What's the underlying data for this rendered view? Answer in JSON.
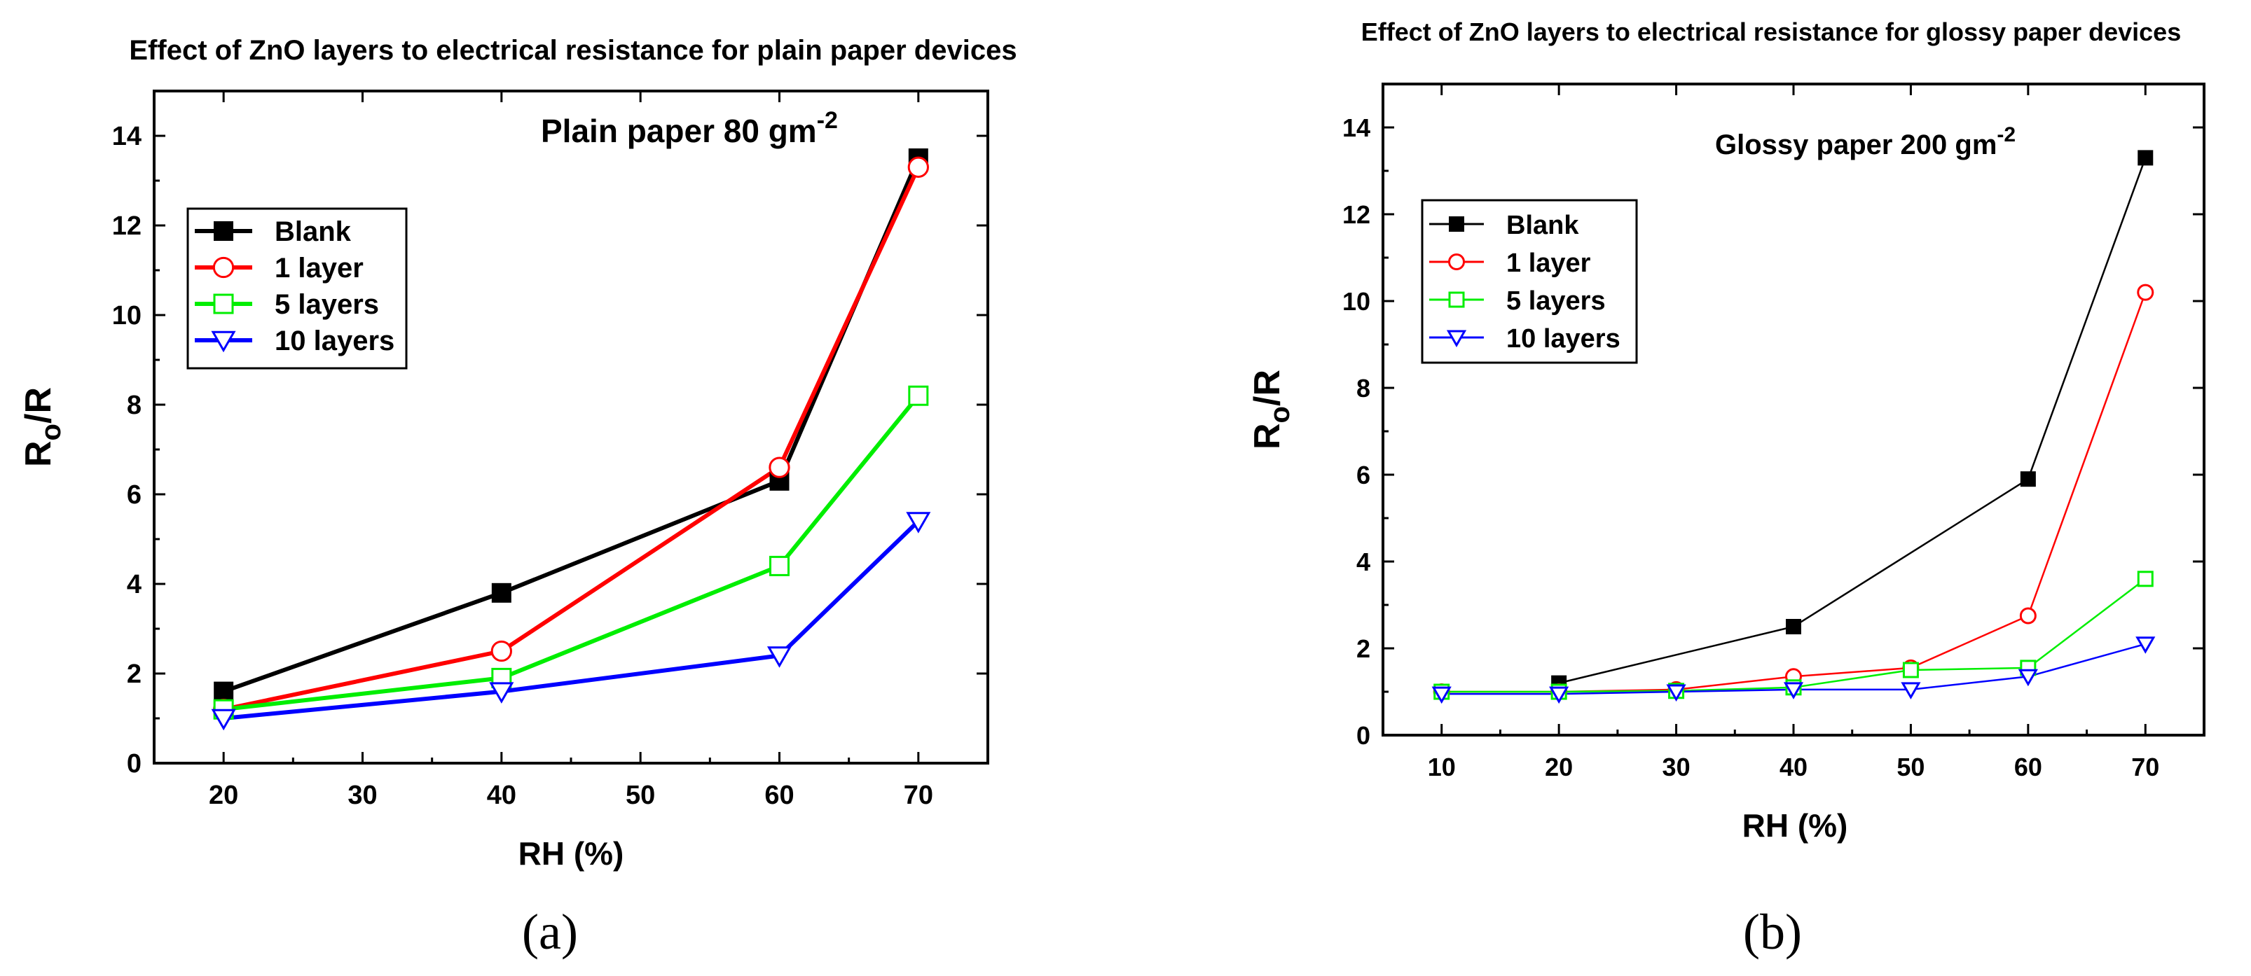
{
  "colors": {
    "blank": "#000000",
    "one_layer": "#ff0000",
    "five_layers": "#00ee00",
    "ten_layers": "#0000ff"
  },
  "chart_data": [
    {
      "type": "line",
      "panel_label": "(a)",
      "title": "Effect of ZnO layers to electrical resistance for plain paper devices",
      "annotation": {
        "text": "Plain paper 80 gm",
        "superscript": "-2"
      },
      "xlabel": "RH (%)",
      "ylabel": {
        "main": "R",
        "subscript": "o",
        "rest": "/R"
      },
      "xlim": [
        15,
        75
      ],
      "ylim": [
        0,
        15
      ],
      "xticks": [
        20,
        30,
        40,
        50,
        60,
        70
      ],
      "yticks": [
        0,
        2,
        4,
        6,
        8,
        10,
        12,
        14
      ],
      "legend_position": "upper-left",
      "series": [
        {
          "name": "Blank",
          "marker": "square-filled",
          "color_key": "blank",
          "x": [
            20,
            40,
            60,
            70
          ],
          "y": [
            1.6,
            3.8,
            6.3,
            13.5
          ]
        },
        {
          "name": "1 layer",
          "marker": "circle-open",
          "color_key": "one_layer",
          "x": [
            20,
            40,
            60,
            70
          ],
          "y": [
            1.2,
            2.5,
            6.6,
            13.3
          ]
        },
        {
          "name": "5 layers",
          "marker": "square-open",
          "color_key": "five_layers",
          "x": [
            20,
            40,
            60,
            70
          ],
          "y": [
            1.2,
            1.9,
            4.4,
            8.2
          ]
        },
        {
          "name": "10 layers",
          "marker": "triangle-down-open",
          "color_key": "ten_layers",
          "x": [
            20,
            40,
            60,
            70
          ],
          "y": [
            1.0,
            1.6,
            2.4,
            5.4
          ]
        }
      ]
    },
    {
      "type": "line",
      "panel_label": "(b)",
      "title": "Effect of ZnO layers to electrical resistance for glossy paper devices",
      "annotation": {
        "text": "Glossy paper 200 gm",
        "superscript": "-2"
      },
      "xlabel": "RH (%)",
      "ylabel": {
        "main": "R",
        "subscript": "o",
        "rest": "/R"
      },
      "xlim": [
        5,
        75
      ],
      "ylim": [
        0,
        15
      ],
      "xticks": [
        10,
        20,
        30,
        40,
        50,
        60,
        70
      ],
      "yticks": [
        0,
        2,
        4,
        6,
        8,
        10,
        12,
        14
      ],
      "legend_position": "upper-left",
      "series": [
        {
          "name": "Blank",
          "marker": "square-filled",
          "color_key": "blank",
          "x": [
            20,
            40,
            60,
            70
          ],
          "y": [
            1.2,
            2.5,
            5.9,
            13.3
          ]
        },
        {
          "name": "1 layer",
          "marker": "circle-open",
          "color_key": "one_layer",
          "x": [
            10,
            20,
            30,
            40,
            50,
            60,
            70
          ],
          "y": [
            1.0,
            1.0,
            1.05,
            1.35,
            1.55,
            2.75,
            10.2
          ]
        },
        {
          "name": "5 layers",
          "marker": "square-open",
          "color_key": "five_layers",
          "x": [
            10,
            20,
            30,
            40,
            50,
            60,
            70
          ],
          "y": [
            1.0,
            1.0,
            1.02,
            1.1,
            1.5,
            1.55,
            3.6
          ]
        },
        {
          "name": "10 layers",
          "marker": "triangle-down-open",
          "color_key": "ten_layers",
          "x": [
            10,
            20,
            30,
            40,
            50,
            60,
            70
          ],
          "y": [
            0.95,
            0.95,
            1.0,
            1.05,
            1.05,
            1.35,
            2.1
          ]
        }
      ]
    }
  ]
}
